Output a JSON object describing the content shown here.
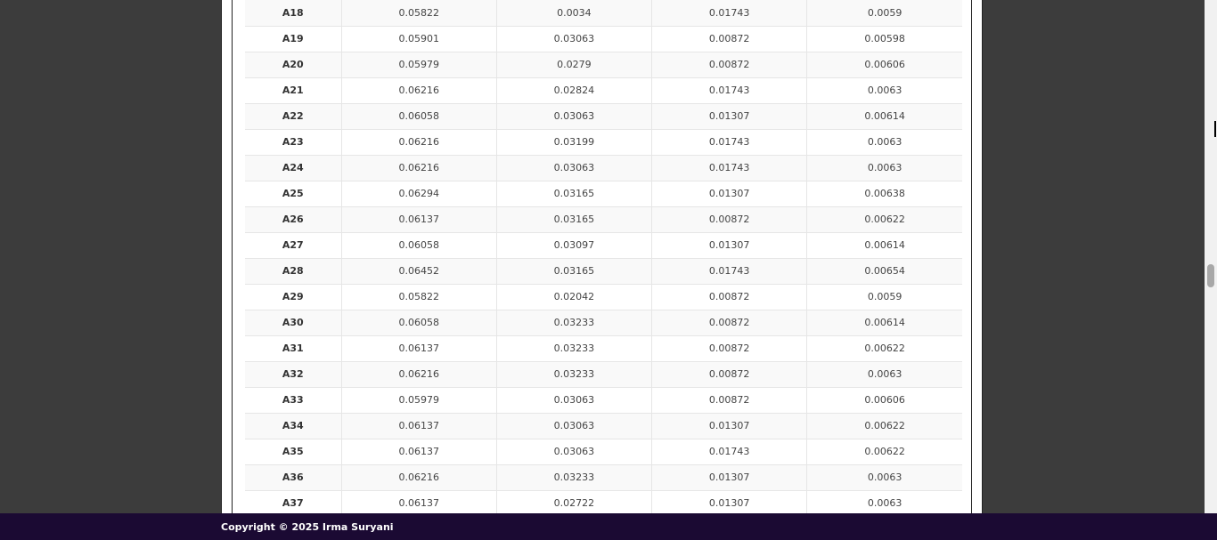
{
  "table": {
    "rows": [
      {
        "id": "A18",
        "c1": "0.05822",
        "c2": "0.0034",
        "c3": "0.01743",
        "c4": "0.0059"
      },
      {
        "id": "A19",
        "c1": "0.05901",
        "c2": "0.03063",
        "c3": "0.00872",
        "c4": "0.00598"
      },
      {
        "id": "A20",
        "c1": "0.05979",
        "c2": "0.0279",
        "c3": "0.00872",
        "c4": "0.00606"
      },
      {
        "id": "A21",
        "c1": "0.06216",
        "c2": "0.02824",
        "c3": "0.01743",
        "c4": "0.0063"
      },
      {
        "id": "A22",
        "c1": "0.06058",
        "c2": "0.03063",
        "c3": "0.01307",
        "c4": "0.00614"
      },
      {
        "id": "A23",
        "c1": "0.06216",
        "c2": "0.03199",
        "c3": "0.01743",
        "c4": "0.0063"
      },
      {
        "id": "A24",
        "c1": "0.06216",
        "c2": "0.03063",
        "c3": "0.01743",
        "c4": "0.0063"
      },
      {
        "id": "A25",
        "c1": "0.06294",
        "c2": "0.03165",
        "c3": "0.01307",
        "c4": "0.00638"
      },
      {
        "id": "A26",
        "c1": "0.06137",
        "c2": "0.03165",
        "c3": "0.00872",
        "c4": "0.00622"
      },
      {
        "id": "A27",
        "c1": "0.06058",
        "c2": "0.03097",
        "c3": "0.01307",
        "c4": "0.00614"
      },
      {
        "id": "A28",
        "c1": "0.06452",
        "c2": "0.03165",
        "c3": "0.01743",
        "c4": "0.00654"
      },
      {
        "id": "A29",
        "c1": "0.05822",
        "c2": "0.02042",
        "c3": "0.00872",
        "c4": "0.0059"
      },
      {
        "id": "A30",
        "c1": "0.06058",
        "c2": "0.03233",
        "c3": "0.00872",
        "c4": "0.00614"
      },
      {
        "id": "A31",
        "c1": "0.06137",
        "c2": "0.03233",
        "c3": "0.00872",
        "c4": "0.00622"
      },
      {
        "id": "A32",
        "c1": "0.06216",
        "c2": "0.03233",
        "c3": "0.00872",
        "c4": "0.0063"
      },
      {
        "id": "A33",
        "c1": "0.05979",
        "c2": "0.03063",
        "c3": "0.00872",
        "c4": "0.00606"
      },
      {
        "id": "A34",
        "c1": "0.06137",
        "c2": "0.03063",
        "c3": "0.01307",
        "c4": "0.00622"
      },
      {
        "id": "A35",
        "c1": "0.06137",
        "c2": "0.03063",
        "c3": "0.01743",
        "c4": "0.00622"
      },
      {
        "id": "A36",
        "c1": "0.06216",
        "c2": "0.03233",
        "c3": "0.01307",
        "c4": "0.0063"
      },
      {
        "id": "A37",
        "c1": "0.06137",
        "c2": "0.02722",
        "c3": "0.01307",
        "c4": "0.0063"
      }
    ]
  },
  "footer": {
    "copyright": "Copyright © 2025 Irma Suryani"
  },
  "colors": {
    "footer_bg": "#1b0a33",
    "outer_bg": "#3c3c3c"
  }
}
